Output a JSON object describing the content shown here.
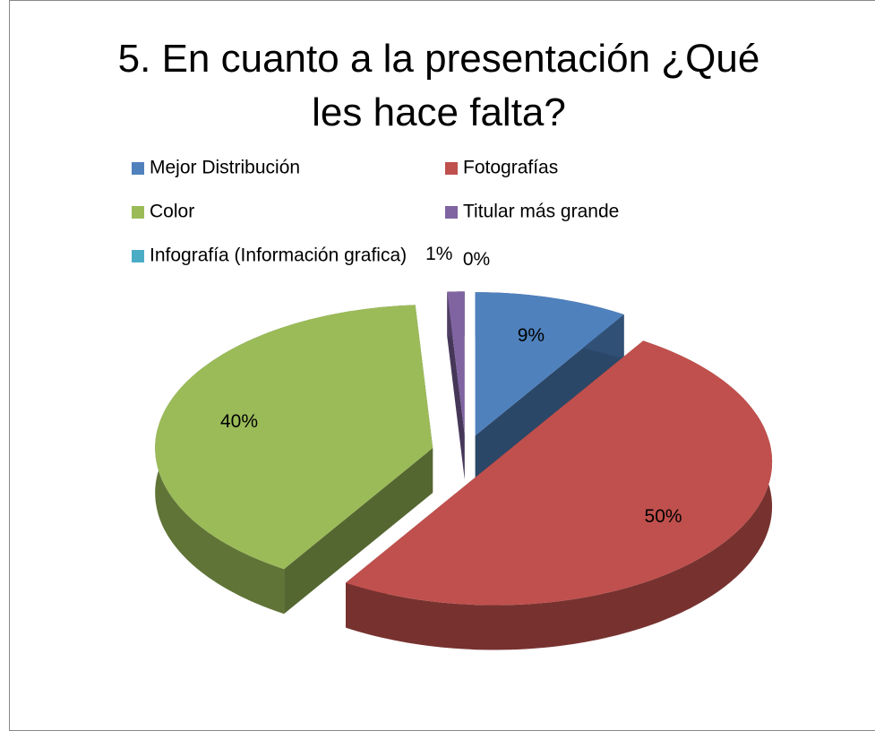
{
  "chart_data": {
    "type": "pie3d",
    "title": "5. En cuanto a la presentación ¿Qué les hace falta?",
    "categories": [
      "Mejor Distribución",
      "Fotografías",
      "Color",
      "Titular más grande",
      "Infografía (Información grafica)"
    ],
    "values": [
      9,
      50,
      40,
      1,
      0
    ],
    "value_labels": [
      "9%",
      "50%",
      "40%",
      "1%",
      "0%"
    ],
    "colors": [
      "#4f81bd",
      "#c0504d",
      "#9bbb59",
      "#8064a2",
      "#4bacc6"
    ],
    "legend": "top"
  }
}
